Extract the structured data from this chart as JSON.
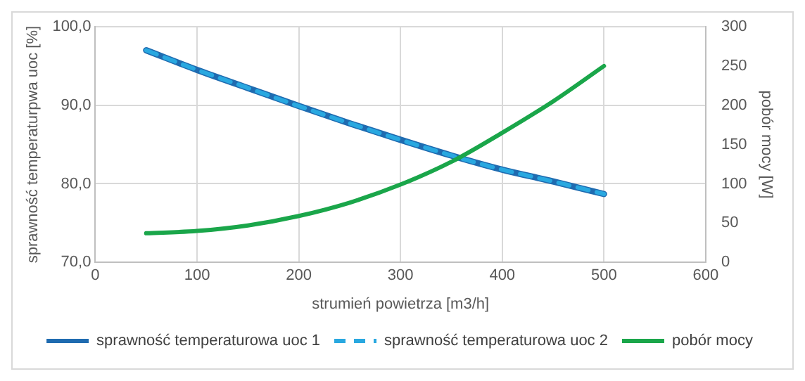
{
  "chart_data": {
    "type": "line",
    "xlabel": "strumień powietrza [m3/h]",
    "ylabel": "sprawność temperaturpwa uoc [%]",
    "y2label": "pobór mocy [W]",
    "x": [
      50,
      100,
      150,
      200,
      250,
      300,
      350,
      400,
      450,
      500
    ],
    "series": [
      {
        "name": "sprawność temperaturowa uoc 1",
        "color": "#1f6bb0",
        "values": [
          97.0,
          94.5,
          92.2,
          89.9,
          87.7,
          85.6,
          83.6,
          81.8,
          80.3,
          78.7
        ]
      },
      {
        "name": "sprawność temperaturowa uoc 2",
        "color": "#29a8e0",
        "line_style": "dashed",
        "values": [
          97.0,
          94.5,
          92.2,
          89.9,
          87.7,
          85.6,
          83.6,
          81.8,
          80.3,
          78.7
        ]
      },
      {
        "name": "pobór mocy",
        "color": "#1aa64a",
        "axis": "y2",
        "values": [
          37,
          40,
          47,
          59,
          76,
          99,
          128,
          165,
          205,
          250
        ]
      }
    ],
    "xlim": [
      0,
      600
    ],
    "xticks": [
      {
        "value": 0,
        "label": "0"
      },
      {
        "value": 100,
        "label": "100"
      },
      {
        "value": 200,
        "label": "200"
      },
      {
        "value": 300,
        "label": "300"
      },
      {
        "value": 400,
        "label": "400"
      },
      {
        "value": 500,
        "label": "500"
      },
      {
        "value": 600,
        "label": "600"
      }
    ],
    "ylim": [
      70,
      100
    ],
    "yticks": [
      {
        "value": 70,
        "label": "70,0"
      },
      {
        "value": 80,
        "label": "80,0"
      },
      {
        "value": 90,
        "label": "90,0"
      },
      {
        "value": 100,
        "label": "100,0"
      }
    ],
    "y2lim": [
      0,
      300
    ],
    "y2ticks": [
      0,
      50,
      100,
      150,
      200,
      250,
      300
    ],
    "grid": true,
    "legend": "bottom",
    "marker": "none",
    "line_style": "solid"
  }
}
